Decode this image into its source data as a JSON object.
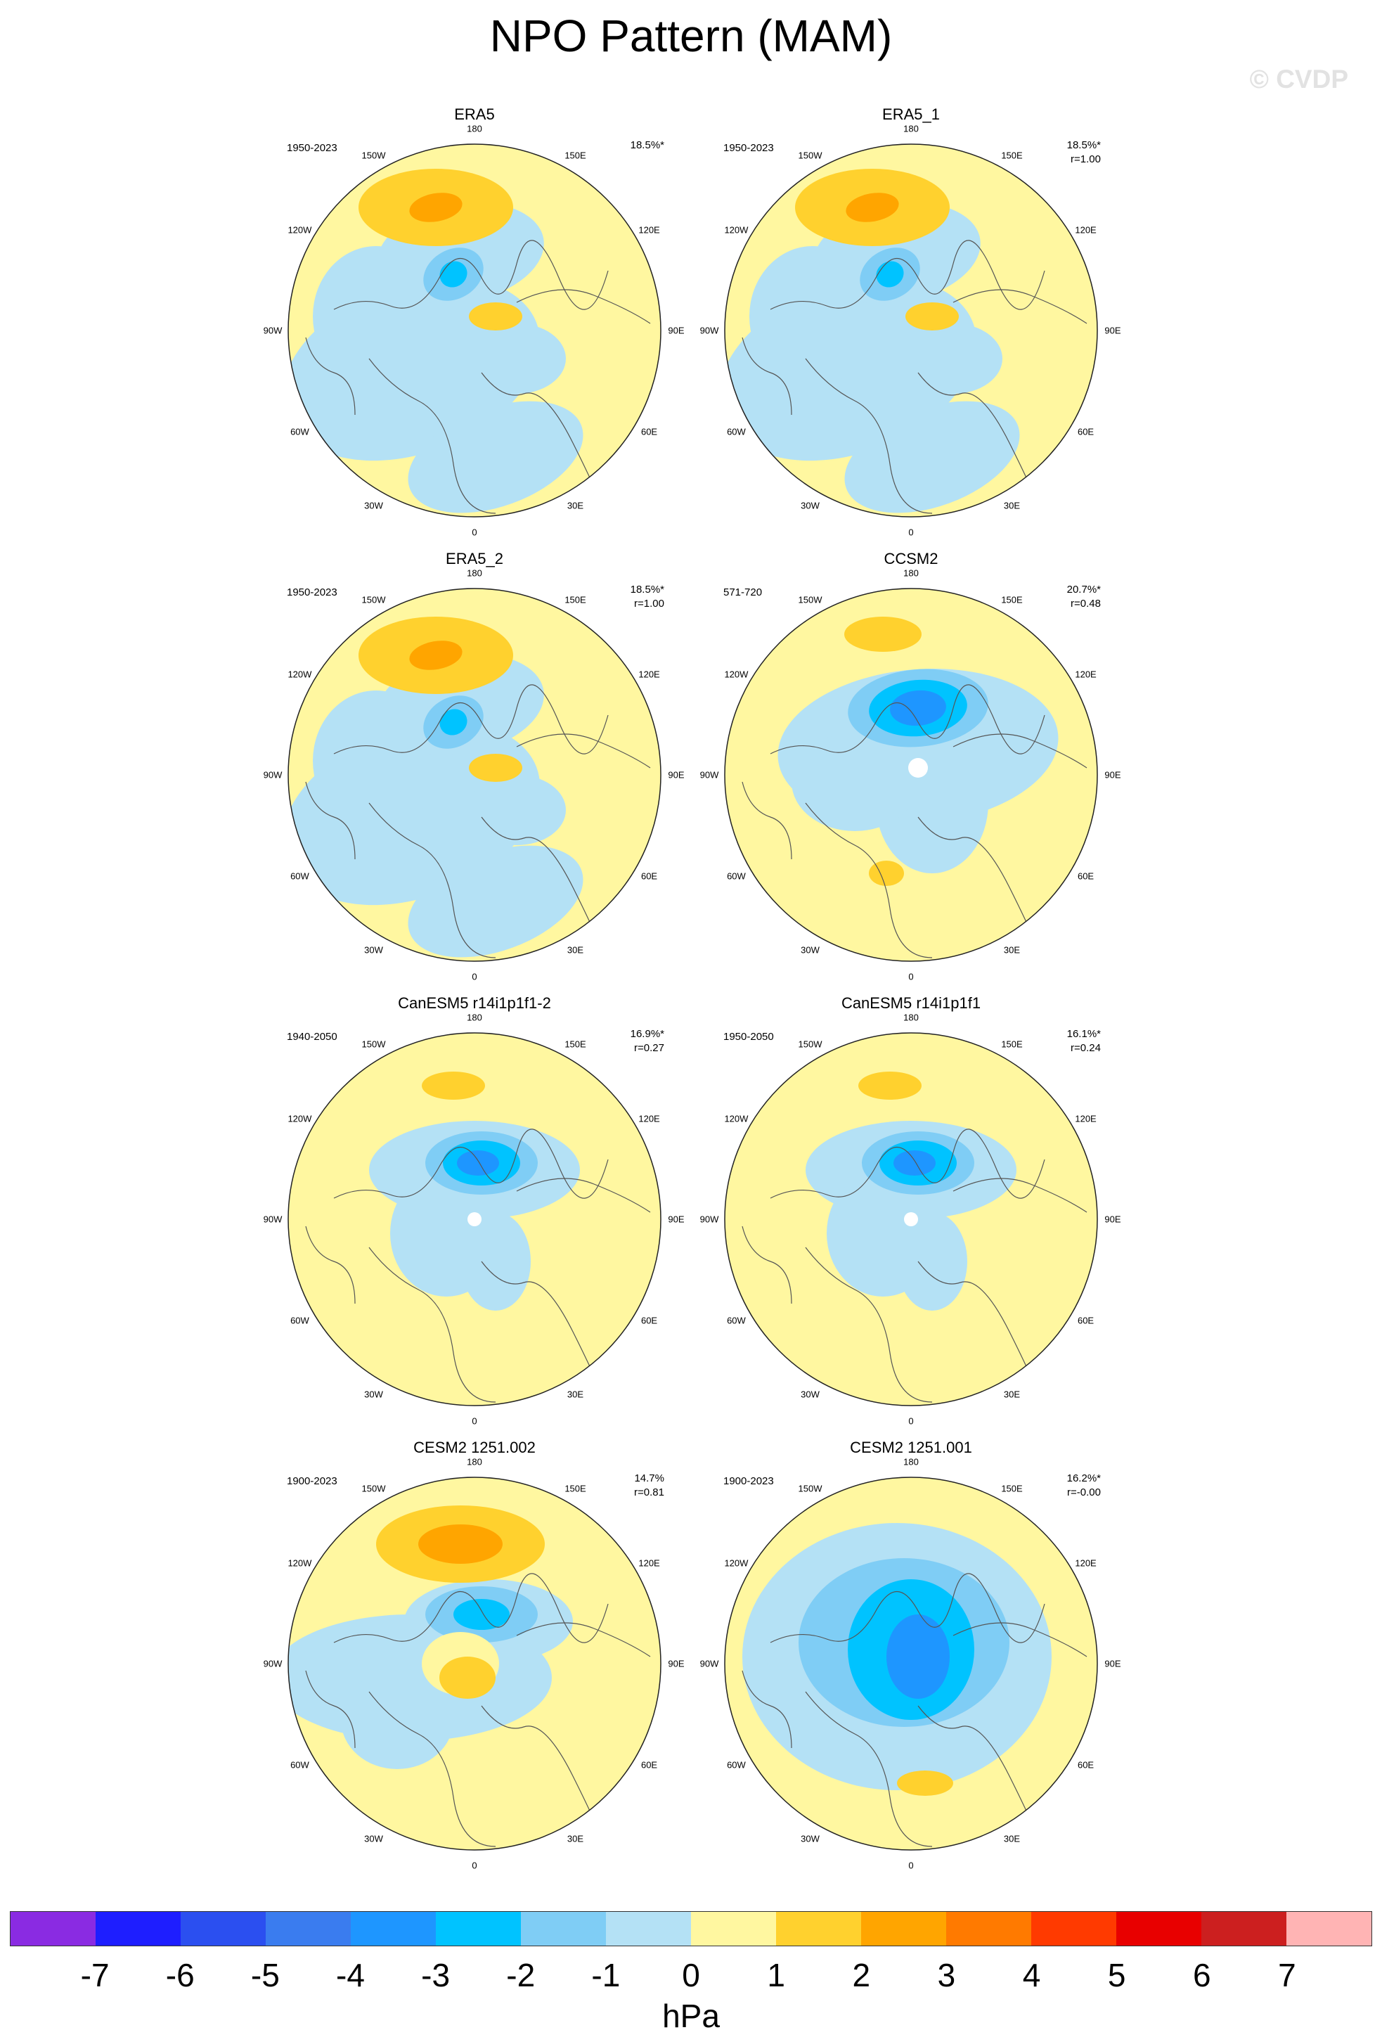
{
  "title": "NPO Pattern (MAM)",
  "watermark": "© CVDP",
  "lon_labels": [
    "180",
    "150E",
    "120E",
    "90E",
    "60E",
    "30E",
    "0",
    "30W",
    "60W",
    "90W",
    "120W",
    "150W"
  ],
  "panels": [
    {
      "title": "ERA5",
      "years": "1950-2023",
      "pct": "18.5%*",
      "r": ""
    },
    {
      "title": "ERA5_1",
      "years": "1950-2023",
      "pct": "18.5%*",
      "r": "r=1.00"
    },
    {
      "title": "ERA5_2",
      "years": "1950-2023",
      "pct": "18.5%*",
      "r": "r=1.00"
    },
    {
      "title": "CCSM2",
      "years": "571-720",
      "pct": "20.7%*",
      "r": "r=0.48"
    },
    {
      "title": "CanESM5 r14i1p1f1-2",
      "years": "1940-2050",
      "pct": "16.9%*",
      "r": "r=0.27"
    },
    {
      "title": "CanESM5 r14i1p1f1",
      "years": "1950-2050",
      "pct": "16.1%*",
      "r": "r=0.24"
    },
    {
      "title": "CESM2 1251.002",
      "years": "1900-2023",
      "pct": "14.7%",
      "r": "r=0.81"
    },
    {
      "title": "CESM2 1251.001",
      "years": "1900-2023",
      "pct": "16.2%*",
      "r": "r=-0.00"
    }
  ],
  "colorbar": {
    "ticks": [
      "-7",
      "-6",
      "-5",
      "-4",
      "-3",
      "-2",
      "-1",
      "0",
      "1",
      "2",
      "3",
      "4",
      "5",
      "6",
      "7"
    ],
    "colors": [
      "#8a2be2",
      "#1e1eff",
      "#2b4ff0",
      "#3a7cef",
      "#1e96ff",
      "#00c3ff",
      "#7fcdf5",
      "#b4e1f5",
      "#fff7a0",
      "#ffd12e",
      "#ffa500",
      "#ff7a00",
      "#ff3a00",
      "#e80000",
      "#cc1f1f",
      "#ffb4b4"
    ],
    "unit": "hPa"
  }
}
